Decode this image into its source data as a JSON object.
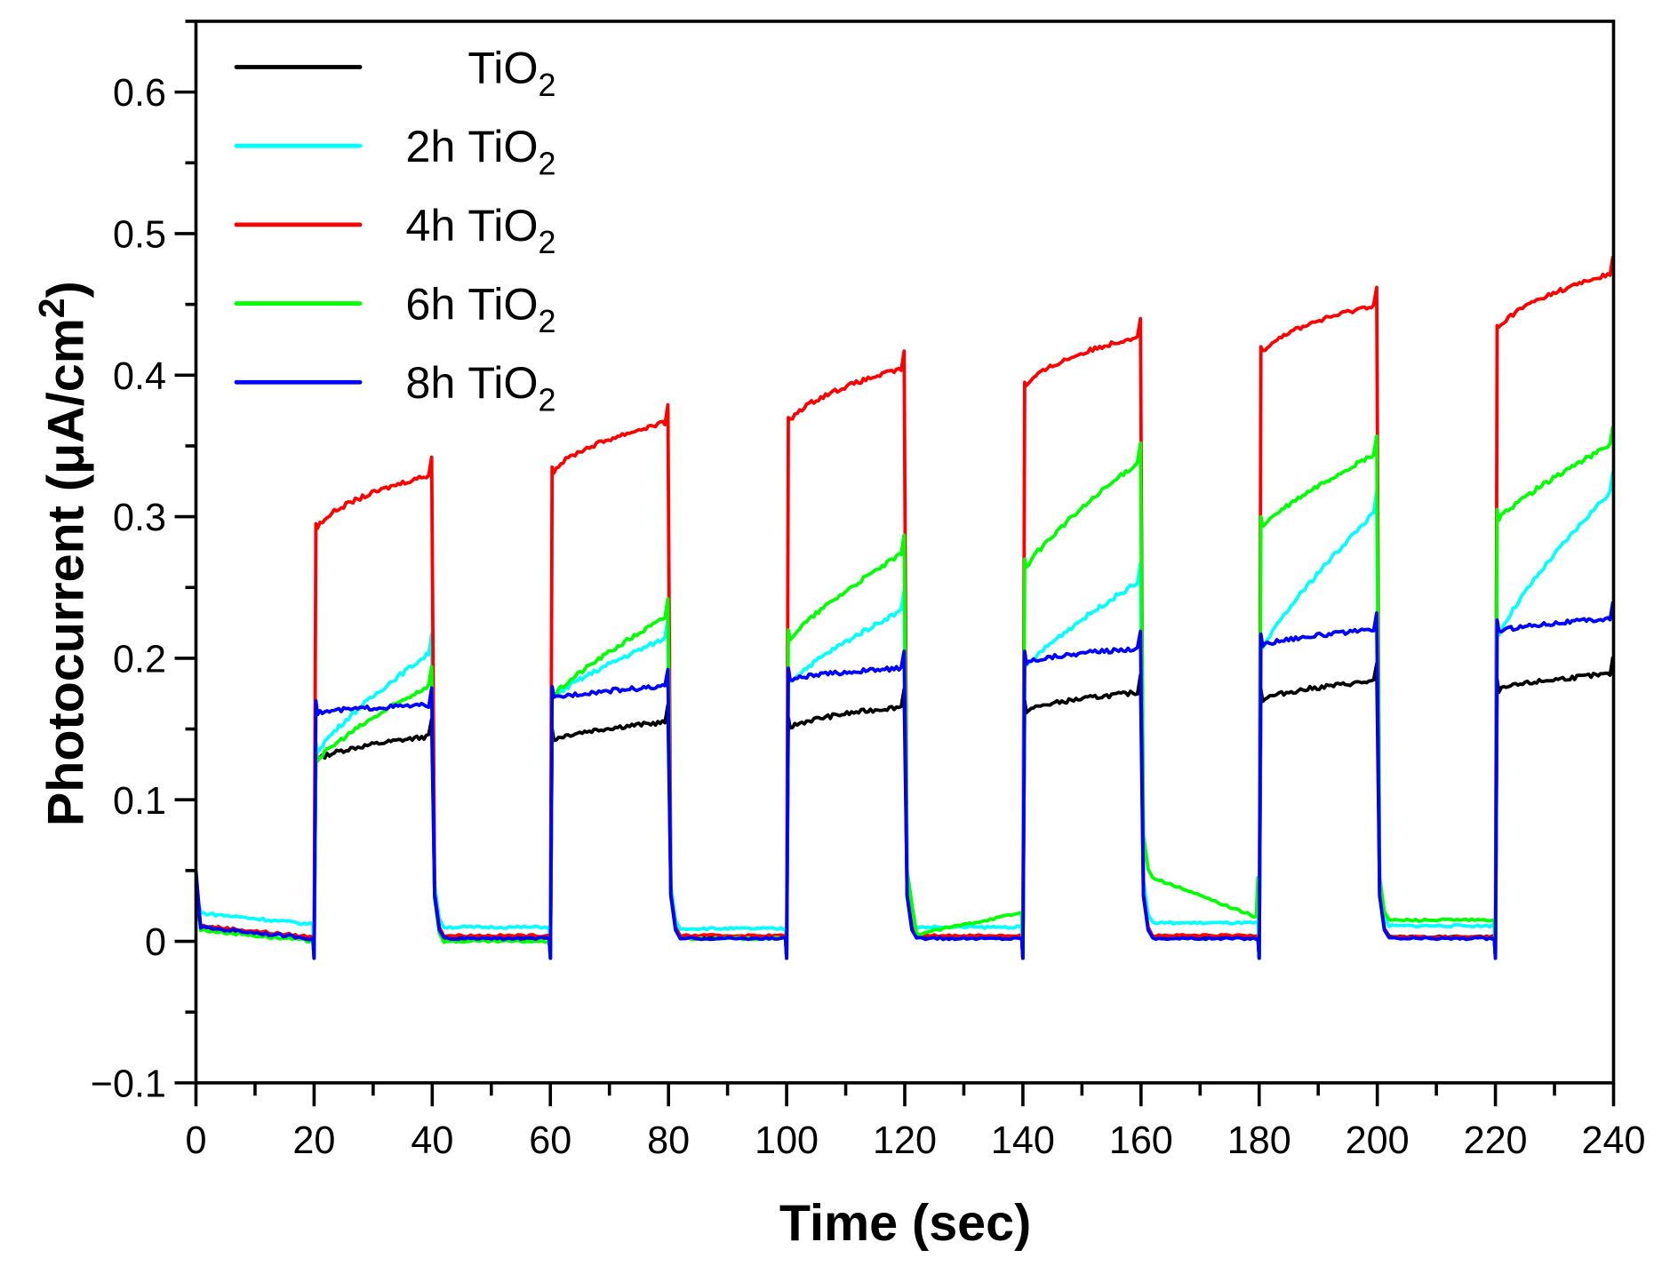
{
  "chart_data": {
    "type": "line",
    "title": "",
    "xlabel": "Time (sec)",
    "ylabel": "Photocurrent (μA/cm²)",
    "ylabel_parts": {
      "main": "Photocurrent (μA/cm",
      "sup": "2",
      "close": ")"
    },
    "xlim": [
      0,
      240
    ],
    "ylim": [
      -0.1,
      0.65
    ],
    "xticks": [
      "0",
      "20",
      "40",
      "60",
      "80",
      "100",
      "120",
      "140",
      "160",
      "180",
      "200",
      "220",
      "240"
    ],
    "yticks": [
      "−0.1",
      "0",
      "0.1",
      "0.2",
      "0.3",
      "0.4",
      "0.5",
      "0.6"
    ],
    "grid": false,
    "legend_position": "top-left",
    "light_on_intervals": [
      [
        20,
        40
      ],
      [
        60,
        80
      ],
      [
        100,
        120
      ],
      [
        140,
        160
      ],
      [
        180,
        200
      ],
      [
        220,
        240
      ]
    ],
    "series": [
      {
        "name": "TiO2",
        "prefix": "",
        "color": "#000000",
        "off": [
          0.002,
          0.002,
          0.003,
          0.003,
          0.003,
          0.003
        ],
        "on": [
          [
            0.125,
            0.145
          ],
          [
            0.14,
            0.155
          ],
          [
            0.148,
            0.166
          ],
          [
            0.16,
            0.176
          ],
          [
            0.168,
            0.184
          ],
          [
            0.175,
            0.189
          ]
        ]
      },
      {
        "name": "2h TiO2",
        "prefix": "2h ",
        "color": "#00FFFF",
        "off": [
          0.012,
          0.01,
          0.009,
          0.01,
          0.013,
          0.011
        ],
        "on": [
          [
            0.13,
            0.205
          ],
          [
            0.17,
            0.215
          ],
          [
            0.18,
            0.235
          ],
          [
            0.19,
            0.255
          ],
          [
            0.2,
            0.305
          ],
          [
            0.21,
            0.32
          ]
        ]
      },
      {
        "name": "4h TiO2",
        "prefix": "4h ",
        "color": "#FF0000",
        "off": [
          0.003,
          0.004,
          0.004,
          0.004,
          0.004,
          0.003
        ],
        "on": [
          [
            0.285,
            0.33
          ],
          [
            0.325,
            0.367
          ],
          [
            0.36,
            0.405
          ],
          [
            0.385,
            0.428
          ],
          [
            0.41,
            0.45
          ],
          [
            0.425,
            0.472
          ]
        ]
      },
      {
        "name": "6h TiO2",
        "prefix": "6h ",
        "color": "#00FF00",
        "off": [
          0.0,
          0.0,
          0.002,
          0.02,
          0.045,
          0.015
        ],
        "on": [
          [
            0.125,
            0.182
          ],
          [
            0.17,
            0.23
          ],
          [
            0.21,
            0.275
          ],
          [
            0.26,
            0.34
          ],
          [
            0.29,
            0.345
          ],
          [
            0.295,
            0.352
          ]
        ]
      },
      {
        "name": "8h TiO2",
        "prefix": "8h ",
        "color": "#0000FF",
        "off": [
          0.002,
          0.002,
          0.002,
          0.002,
          0.002,
          0.002
        ],
        "on": [
          [
            0.16,
            0.167
          ],
          [
            0.17,
            0.18
          ],
          [
            0.183,
            0.193
          ],
          [
            0.195,
            0.207
          ],
          [
            0.207,
            0.22
          ],
          [
            0.217,
            0.228
          ]
        ]
      }
    ],
    "legend": {
      "base": "TiO",
      "sub": "2"
    }
  }
}
